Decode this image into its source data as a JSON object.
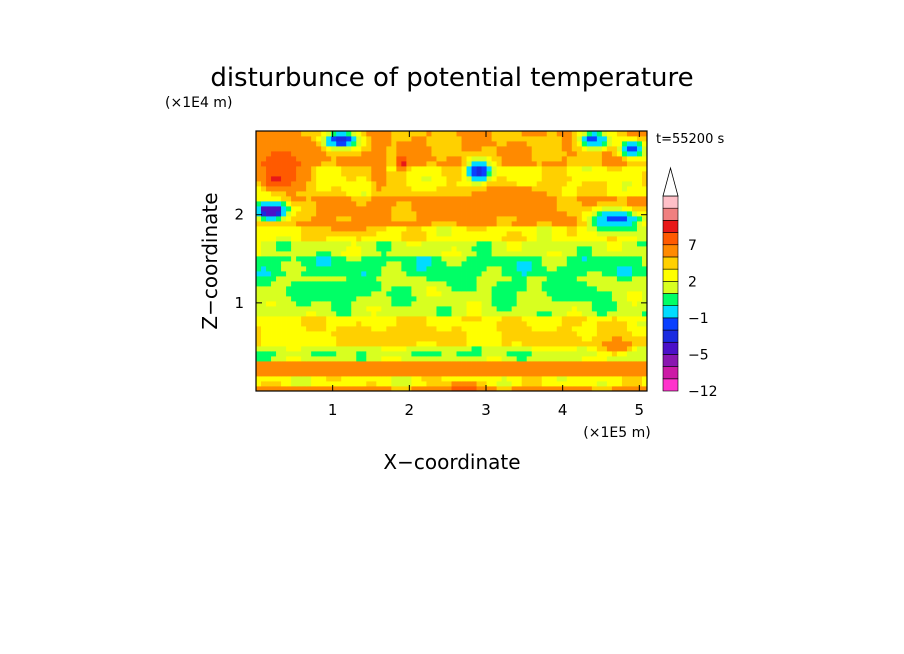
{
  "chart_data": {
    "type": "heatmap",
    "title": "disturbunce of potential temperature",
    "xlabel": "X−coordinate",
    "ylabel": "Z−coordinate",
    "x_scale_label": "(×1E5 m)",
    "y_scale_label": "(×1E4 m)",
    "time_label": "t=55200 s",
    "xlim": [
      0,
      5.1
    ],
    "ylim": [
      0,
      2.95
    ],
    "x_ticks": [
      "1",
      "2",
      "3",
      "4",
      "5"
    ],
    "x_tick_values": [
      1,
      2,
      3,
      4,
      5
    ],
    "y_ticks": [
      "1",
      "2"
    ],
    "y_tick_values": [
      1,
      2
    ],
    "colorbar": {
      "levels": [
        -12,
        -10,
        -8,
        -5,
        -4,
        -3,
        -1,
        0,
        1,
        2,
        3,
        5,
        7,
        9,
        11
      ],
      "tick_labels": [
        "−12",
        "−5",
        "−1",
        "2",
        "7"
      ],
      "tick_values": [
        -12,
        -5,
        -1,
        2,
        7
      ],
      "colors": [
        "#ff33cc",
        "#cc1aa6",
        "#8a16b0",
        "#4b10c8",
        "#1a2be0",
        "#0a40ff",
        "#00dcff",
        "#00ff66",
        "#d8ff20",
        "#ffff00",
        "#ffd000",
        "#ff8a00",
        "#ff5a00",
        "#e81818",
        "#f08080",
        "#ffc0c8"
      ],
      "extend": "max"
    },
    "bands": [
      {
        "z": [
          0.0,
          0.06
        ],
        "value": 3.5
      },
      {
        "z": [
          0.06,
          0.18
        ],
        "value": 1.5
      },
      {
        "z": [
          0.18,
          0.32
        ],
        "value": 4.0
      },
      {
        "z": [
          0.32,
          0.42
        ],
        "value": 0.3
      },
      {
        "z": [
          0.42,
          0.5
        ],
        "value": -0.5
      },
      {
        "z": [
          0.5,
          0.85
        ],
        "value": 1.8
      },
      {
        "z": [
          0.85,
          1.3
        ],
        "value": 0.4
      },
      {
        "z": [
          1.3,
          1.55
        ],
        "value": -0.4
      },
      {
        "z": [
          1.55,
          1.72
        ],
        "value": 0.5
      },
      {
        "z": [
          1.72,
          1.9
        ],
        "value": 1.6
      },
      {
        "z": [
          1.9,
          2.2
        ],
        "value": 3.2
      },
      {
        "z": [
          2.2,
          2.55
        ],
        "value": 1.8
      },
      {
        "z": [
          2.55,
          2.95
        ],
        "value": 3.0
      }
    ],
    "features": [
      {
        "x": 0.5,
        "z": 0.62,
        "rx": 0.7,
        "rz": 0.22,
        "value": 1.8
      },
      {
        "x": 1.8,
        "z": 0.62,
        "rx": 1.1,
        "rz": 0.22,
        "value": 2.3
      },
      {
        "x": 3.9,
        "z": 0.58,
        "rx": 0.9,
        "rz": 0.2,
        "value": 2.3
      },
      {
        "x": 2.5,
        "z": 1.3,
        "rx": 0.4,
        "rz": 0.12,
        "value": -0.6
      },
      {
        "x": 1.0,
        "z": 1.15,
        "rx": 0.9,
        "rz": 0.18,
        "value": -0.5
      },
      {
        "x": 4.1,
        "z": 1.15,
        "rx": 0.6,
        "rz": 0.18,
        "value": -0.5
      },
      {
        "x": 3.3,
        "z": 1.18,
        "rx": 0.4,
        "rz": 0.12,
        "value": -0.5
      },
      {
        "x": 2.9,
        "z": 2.1,
        "rx": 1.1,
        "rz": 0.18,
        "value": 3.6
      },
      {
        "x": 3.3,
        "z": 2.25,
        "rx": 0.7,
        "rz": 0.12,
        "value": 4.0
      },
      {
        "x": 0.35,
        "z": 2.55,
        "rx": 0.4,
        "rz": 0.35,
        "value": 6.5
      },
      {
        "x": 0.25,
        "z": 2.4,
        "rx": 0.15,
        "rz": 0.1,
        "value": 8.0
      },
      {
        "x": 0.2,
        "z": 2.05,
        "rx": 0.28,
        "rz": 0.14,
        "value": -5.0
      },
      {
        "x": 0.2,
        "z": 2.05,
        "rx": 0.18,
        "rz": 0.08,
        "value": -7.0
      },
      {
        "x": 1.1,
        "z": 2.85,
        "rx": 0.3,
        "rz": 0.12,
        "value": -4.5
      },
      {
        "x": 1.9,
        "z": 2.6,
        "rx": 0.08,
        "rz": 0.12,
        "value": 8.5
      },
      {
        "x": 1.6,
        "z": 2.55,
        "rx": 0.12,
        "rz": 0.35,
        "value": 5.0
      },
      {
        "x": 2.9,
        "z": 2.5,
        "rx": 0.18,
        "rz": 0.15,
        "value": -5.0
      },
      {
        "x": 4.4,
        "z": 2.85,
        "rx": 0.25,
        "rz": 0.12,
        "value": -4.0
      },
      {
        "x": 4.9,
        "z": 2.75,
        "rx": 0.2,
        "rz": 0.12,
        "value": -3.5
      },
      {
        "x": 4.7,
        "z": 1.95,
        "rx": 0.45,
        "rz": 0.15,
        "value": -4.0
      },
      {
        "x": 1.2,
        "z": 1.85,
        "rx": 0.5,
        "rz": 0.12,
        "value": 3.5
      },
      {
        "x": 4.7,
        "z": 0.5,
        "rx": 0.3,
        "rz": 0.12,
        "value": 4.5
      },
      {
        "x": 2.7,
        "z": 0.05,
        "rx": 0.3,
        "rz": 0.06,
        "value": 6.0
      }
    ]
  }
}
